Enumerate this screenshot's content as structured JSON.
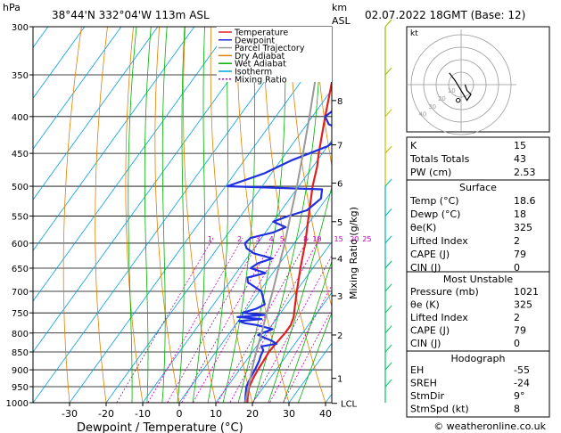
{
  "header": {
    "hpa_label": "hPa",
    "location": "38°44'N  332°04'W  113m  ASL",
    "km_label": "km",
    "asl_label": "ASL",
    "datetime": "02.07.2022  18GMT  (Base: 12)"
  },
  "chart_data": {
    "type": "line",
    "title": "38°44'N  332°04'W  113m  ASL",
    "xlabel": "Dewpoint / Temperature (°C)",
    "ylabel": "hPa",
    "y2label": "Mixing Ratio (g/kg)",
    "x_ticks": [
      -30,
      -20,
      -10,
      0,
      10,
      20,
      30,
      40
    ],
    "pressure_levels": [
      300,
      350,
      400,
      450,
      500,
      550,
      600,
      650,
      700,
      750,
      800,
      850,
      900,
      950,
      1000
    ],
    "km_ticks": [
      {
        "km": "1",
        "p": 925
      },
      {
        "km": "2",
        "p": 805
      },
      {
        "km": "3",
        "p": 710
      },
      {
        "km": "4",
        "p": 630
      },
      {
        "km": "5",
        "p": 560
      },
      {
        "km": "6",
        "p": 495
      },
      {
        "km": "7",
        "p": 438
      },
      {
        "km": "8",
        "p": 380
      }
    ],
    "lcl_label": "LCL",
    "lcl_p": 1002,
    "mixing_ratio_labels": [
      "1",
      "2",
      "3",
      "4",
      "5",
      "8",
      "10",
      "15",
      "20",
      "25"
    ],
    "legend": [
      {
        "name": "Temperature",
        "color": "#e02020",
        "dash": ""
      },
      {
        "name": "Dewpoint",
        "color": "#2030e0",
        "dash": ""
      },
      {
        "name": "Parcel Trajectory",
        "color": "#999999",
        "dash": ""
      },
      {
        "name": "Dry Adiabat",
        "color": "#e08000",
        "dash": ""
      },
      {
        "name": "Wet Adiabat",
        "color": "#00b000",
        "dash": ""
      },
      {
        "name": "Isotherm",
        "color": "#00a0e0",
        "dash": ""
      },
      {
        "name": "Mixing Ratio",
        "color": "#c000c0",
        "dash": "2,2"
      }
    ],
    "series": [
      {
        "name": "Temperature",
        "color": "#e02020",
        "points": [
          [
            1000,
            18.6
          ],
          [
            975,
            17.2
          ],
          [
            950,
            16.0
          ],
          [
            925,
            15.4
          ],
          [
            900,
            15.0
          ],
          [
            875,
            14.8
          ],
          [
            850,
            14.5
          ],
          [
            825,
            14.8
          ],
          [
            800,
            15.2
          ],
          [
            780,
            15.2
          ],
          [
            760,
            14.4
          ],
          [
            740,
            13.0
          ],
          [
            700,
            10.2
          ],
          [
            650,
            6.6
          ],
          [
            600,
            3.0
          ],
          [
            550,
            -1.4
          ],
          [
            500,
            -6.2
          ],
          [
            470,
            -8.8
          ],
          [
            450,
            -11.0
          ],
          [
            400,
            -16.5
          ],
          [
            350,
            -22.5
          ],
          [
            300,
            -29.0
          ]
        ]
      },
      {
        "name": "Dewpoint",
        "color": "#2030e0",
        "points": [
          [
            1000,
            18.0
          ],
          [
            975,
            16.6
          ],
          [
            950,
            15.2
          ],
          [
            925,
            14.6
          ],
          [
            900,
            14.2
          ],
          [
            875,
            13.6
          ],
          [
            860,
            13.0
          ],
          [
            845,
            12.6
          ],
          [
            835,
            11.4
          ],
          [
            828,
            15.0
          ],
          [
            820,
            13.0
          ],
          [
            805,
            8.2
          ],
          [
            800,
            9.0
          ],
          [
            790,
            11.0
          ],
          [
            780,
            6.0
          ],
          [
            775,
            2.2
          ],
          [
            770,
            0.2
          ],
          [
            765,
            6.0
          ],
          [
            760,
            -1.0
          ],
          [
            755,
            6.0
          ],
          [
            750,
            -0.5
          ],
          [
            740,
            2.5
          ],
          [
            730,
            4.0
          ],
          [
            700,
            0.5
          ],
          [
            680,
            -5.0
          ],
          [
            670,
            -6.0
          ],
          [
            660,
            -2.0
          ],
          [
            650,
            -7.0
          ],
          [
            640,
            -6.0
          ],
          [
            630,
            -3.0
          ],
          [
            620,
            -9.0
          ],
          [
            610,
            -12.0
          ],
          [
            600,
            -13.5
          ],
          [
            590,
            -13.0
          ],
          [
            580,
            -8.0
          ],
          [
            570,
            -5.5
          ],
          [
            560,
            -10.0
          ],
          [
            550,
            -7.0
          ],
          [
            540,
            -3.0
          ],
          [
            520,
            -1.5
          ],
          [
            505,
            -3.0
          ],
          [
            500,
            -29.5
          ],
          [
            480,
            -22.0
          ],
          [
            460,
            -17.0
          ],
          [
            440,
            -10.0
          ],
          [
            420,
            -7.5
          ],
          [
            410,
            -14.0
          ],
          [
            400,
            -16.5
          ],
          [
            380,
            -14.0
          ],
          [
            350,
            -15.0
          ],
          [
            340,
            -13.5
          ],
          [
            330,
            -5.0
          ],
          [
            320,
            -3.0
          ]
        ]
      },
      {
        "name": "Parcel Trajectory",
        "color": "#999999",
        "points": [
          [
            1002,
            18.1
          ],
          [
            950,
            15.8
          ],
          [
            900,
            13.4
          ],
          [
            850,
            11.0
          ],
          [
            800,
            8.8
          ],
          [
            750,
            6.2
          ],
          [
            700,
            3.6
          ],
          [
            650,
            0.6
          ],
          [
            600,
            -2.6
          ],
          [
            550,
            -6.4
          ],
          [
            500,
            -10.5
          ],
          [
            450,
            -15.3
          ],
          [
            400,
            -20.8
          ],
          [
            350,
            -27.2
          ],
          [
            300,
            -34.6
          ]
        ]
      }
    ]
  },
  "indices": {
    "rows": [
      {
        "label": "K",
        "value": "15"
      },
      {
        "label": "Totals Totals",
        "value": "43"
      },
      {
        "label": "PW (cm)",
        "value": "2.53"
      }
    ]
  },
  "surface": {
    "title": "Surface",
    "rows": [
      {
        "label": "Temp (°C)",
        "value": "18.6"
      },
      {
        "label": "Dewp (°C)",
        "value": "18"
      },
      {
        "label": "θe(K)",
        "value": "325"
      },
      {
        "label": "Lifted Index",
        "value": "2"
      },
      {
        "label": "CAPE (J)",
        "value": "79"
      },
      {
        "label": "CIN (J)",
        "value": "0"
      }
    ]
  },
  "most_unstable": {
    "title": "Most Unstable",
    "rows": [
      {
        "label": "Pressure (mb)",
        "value": "1021"
      },
      {
        "label": "θe (K)",
        "value": "325"
      },
      {
        "label": "Lifted Index",
        "value": "2"
      },
      {
        "label": "CAPE (J)",
        "value": "79"
      },
      {
        "label": "CIN (J)",
        "value": "0"
      }
    ]
  },
  "hodograph_table": {
    "title": "Hodograph",
    "rows": [
      {
        "label": "EH",
        "value": "-55"
      },
      {
        "label": "SREH",
        "value": "-24"
      },
      {
        "label": "StmDir",
        "value": "9°"
      },
      {
        "label": "StmSpd (kt)",
        "value": "8"
      }
    ]
  },
  "hodograph": {
    "unit_label": "kt",
    "ring_labels": [
      "10",
      "20",
      "30",
      "40"
    ],
    "trace": [
      [
        2,
        0
      ],
      [
        3,
        -3
      ],
      [
        5,
        -5
      ],
      [
        3,
        -8
      ],
      [
        0,
        -3
      ],
      [
        -3,
        2
      ],
      [
        -6,
        6
      ]
    ],
    "storm_motion": [
      -1.5,
      -8
    ]
  },
  "footer": {
    "copyright": "© weatheronline.co.uk"
  }
}
